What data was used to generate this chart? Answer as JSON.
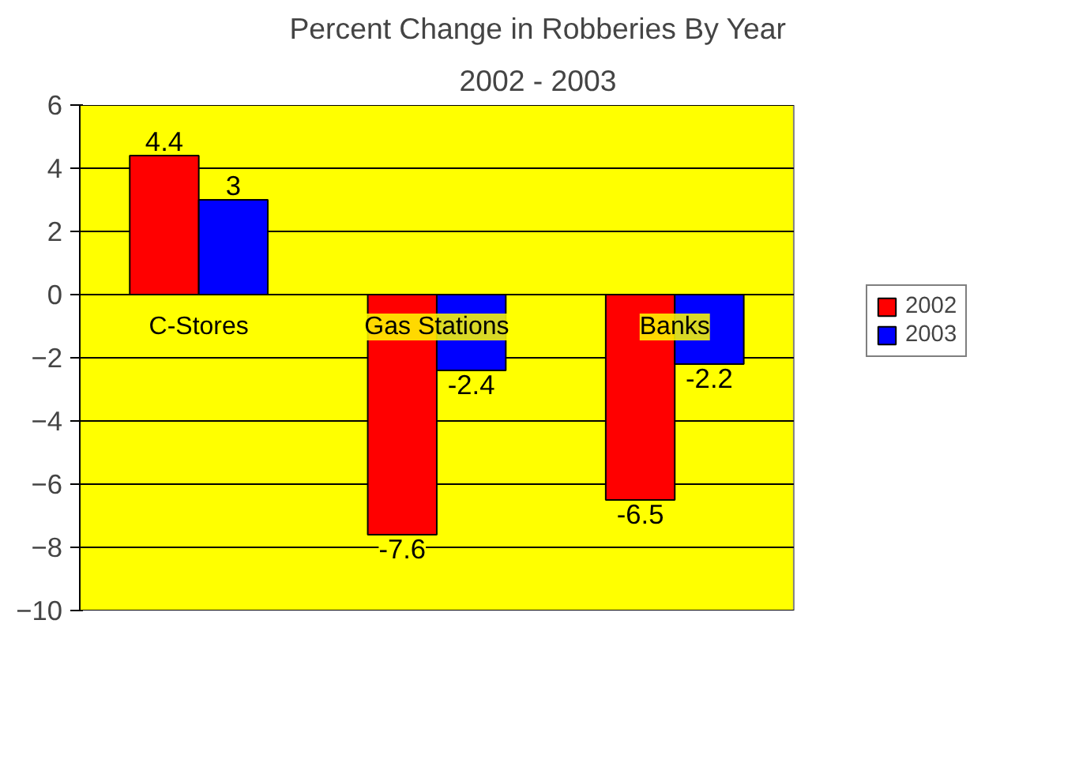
{
  "chart_data": {
    "type": "bar",
    "title": "Percent Change in Robberies By Year",
    "subtitle": "2002 - 2003",
    "categories": [
      "C-Stores",
      "Gas Stations",
      "Banks"
    ],
    "series": [
      {
        "name": "2002",
        "color": "#ff0000",
        "values": [
          4.4,
          -7.6,
          -6.5
        ]
      },
      {
        "name": "2003",
        "color": "#0000ff",
        "values": [
          3,
          -2.4,
          -2.2
        ]
      }
    ],
    "ylim": [
      -10,
      6
    ],
    "yticks": [
      -10,
      -8,
      -6,
      -4,
      -2,
      0,
      2,
      4,
      6
    ],
    "grid": "y",
    "legend": "right",
    "data_labels": true
  }
}
